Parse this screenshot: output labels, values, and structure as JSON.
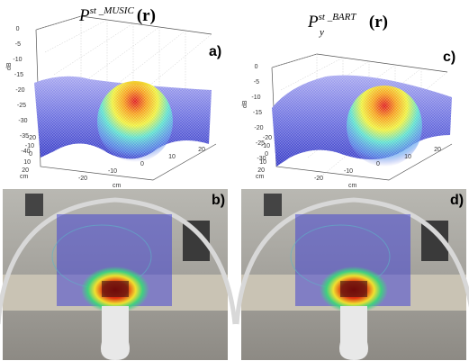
{
  "panels": [
    {
      "label": "a)",
      "title": {
        "base": "P",
        "sup": "st _MUSIC",
        "sub": "",
        "arg": "(r)"
      },
      "z_label": "dB",
      "z_ticks": [
        "0",
        "-5",
        "-10",
        "-15",
        "-20",
        "-25",
        "-30",
        "-35",
        "-40"
      ],
      "y_label": "cm",
      "y_ticks": [
        "-20",
        "-10",
        "0",
        "10",
        "20"
      ],
      "x_label": "cm",
      "x_ticks": [
        "-20",
        "-10",
        "0",
        "10",
        "20"
      ]
    },
    {
      "label": "c)",
      "title": {
        "base": "P",
        "sup": "st _BART",
        "sub": "y",
        "arg": "(r)"
      },
      "z_label": "dB",
      "z_ticks": [
        "0",
        "-5",
        "-10",
        "-15",
        "-20",
        "-25",
        "-30"
      ],
      "y_label": "cm",
      "y_ticks": [
        "-20",
        "-10",
        "0",
        "10",
        "20"
      ],
      "x_label": "cm",
      "x_ticks": [
        "-20",
        "-10",
        "0",
        "10",
        "20"
      ]
    }
  ],
  "photos": [
    {
      "label": "b)"
    },
    {
      "label": "d)"
    }
  ]
}
